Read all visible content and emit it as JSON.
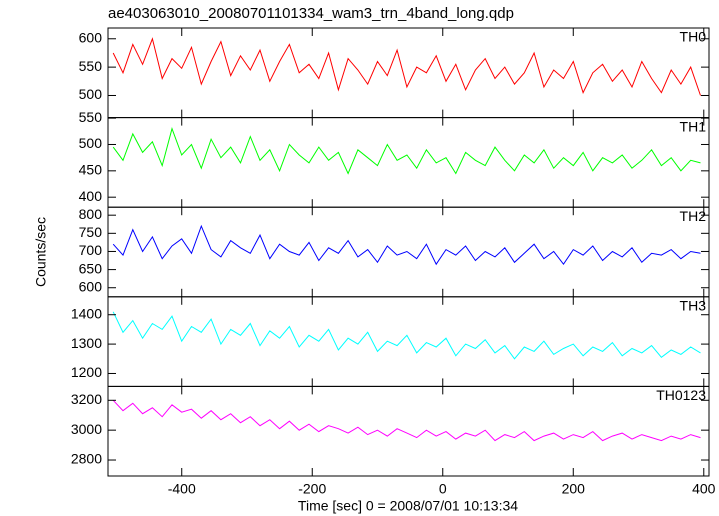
{
  "chart_data": {
    "type": "line",
    "title": "ae403063010_20080701101334_wam3_trn_4band_long.qdp",
    "xlabel": "Time [sec] 0 = 2008/07/01 10:13:34",
    "ylabel": "Counts/sec",
    "xlim": [
      -513,
      408
    ],
    "xticks": [
      -400,
      -200,
      0,
      200,
      400
    ],
    "x": [
      -505,
      -490,
      -475,
      -460,
      -445,
      -430,
      -415,
      -400,
      -385,
      -370,
      -355,
      -340,
      -325,
      -310,
      -295,
      -280,
      -265,
      -250,
      -235,
      -220,
      -205,
      -190,
      -175,
      -160,
      -145,
      -130,
      -115,
      -100,
      -85,
      -70,
      -55,
      -40,
      -25,
      -10,
      5,
      20,
      35,
      50,
      65,
      80,
      95,
      110,
      125,
      140,
      155,
      170,
      185,
      200,
      215,
      230,
      245,
      260,
      275,
      290,
      305,
      320,
      335,
      350,
      365,
      380,
      395
    ],
    "panels": [
      {
        "name": "TH0",
        "color": "#ff0000",
        "ylim": [
          461,
          619
        ],
        "yticks": [
          500,
          550,
          600
        ],
        "values": [
          575,
          540,
          590,
          555,
          600,
          530,
          565,
          548,
          585,
          520,
          560,
          595,
          535,
          570,
          545,
          580,
          525,
          560,
          590,
          540,
          555,
          530,
          575,
          510,
          565,
          545,
          520,
          560,
          535,
          580,
          515,
          550,
          540,
          570,
          525,
          555,
          510,
          545,
          565,
          530,
          550,
          520,
          540,
          575,
          515,
          545,
          530,
          560,
          505,
          540,
          555,
          525,
          545,
          515,
          560,
          530,
          505,
          545,
          520,
          550,
          500
        ]
      },
      {
        "name": "TH1",
        "color": "#00ff00",
        "ylim": [
          381,
          551
        ],
        "yticks": [
          400,
          450,
          500,
          550
        ],
        "values": [
          495,
          470,
          520,
          485,
          505,
          460,
          530,
          480,
          500,
          455,
          510,
          475,
          495,
          465,
          515,
          470,
          490,
          450,
          500,
          480,
          465,
          495,
          470,
          485,
          445,
          490,
          475,
          460,
          500,
          470,
          480,
          455,
          490,
          465,
          475,
          445,
          485,
          470,
          460,
          495,
          470,
          450,
          480,
          465,
          490,
          455,
          475,
          460,
          485,
          450,
          475,
          465,
          480,
          455,
          470,
          490,
          460,
          475,
          450,
          470,
          465
        ]
      },
      {
        "name": "TH2",
        "color": "#0000ff",
        "ylim": [
          575,
          822
        ],
        "yticks": [
          600,
          650,
          700,
          750,
          800
        ],
        "values": [
          720,
          690,
          760,
          700,
          740,
          680,
          715,
          735,
          695,
          770,
          705,
          685,
          730,
          710,
          695,
          745,
          680,
          720,
          700,
          690,
          725,
          675,
          710,
          695,
          730,
          685,
          705,
          670,
          715,
          690,
          700,
          680,
          720,
          665,
          705,
          690,
          715,
          675,
          700,
          685,
          710,
          670,
          695,
          720,
          680,
          700,
          665,
          705,
          690,
          715,
          675,
          700,
          685,
          710,
          670,
          695,
          690,
          705,
          680,
          700,
          695
        ]
      },
      {
        "name": "TH3",
        "color": "#00ffff",
        "ylim": [
          1156,
          1461
        ],
        "yticks": [
          1200,
          1300,
          1400
        ],
        "values": [
          1410,
          1340,
          1380,
          1320,
          1370,
          1350,
          1395,
          1310,
          1360,
          1340,
          1385,
          1300,
          1350,
          1330,
          1370,
          1295,
          1345,
          1320,
          1360,
          1290,
          1330,
          1310,
          1350,
          1280,
          1320,
          1300,
          1340,
          1275,
          1310,
          1295,
          1330,
          1270,
          1305,
          1290,
          1320,
          1260,
          1300,
          1285,
          1315,
          1270,
          1295,
          1250,
          1290,
          1275,
          1310,
          1265,
          1285,
          1300,
          1260,
          1290,
          1275,
          1305,
          1260,
          1285,
          1270,
          1295,
          1255,
          1280,
          1265,
          1290,
          1270
        ]
      },
      {
        "name": "TH0123",
        "color": "#ff00ff",
        "ylim": [
          2693,
          3293
        ],
        "yticks": [
          2800,
          3000,
          3200
        ],
        "values": [
          3200,
          3130,
          3180,
          3110,
          3150,
          3090,
          3170,
          3120,
          3140,
          3080,
          3130,
          3070,
          3110,
          3050,
          3090,
          3030,
          3070,
          3010,
          3060,
          3000,
          3040,
          2990,
          3030,
          3010,
          2980,
          3020,
          2970,
          3000,
          2960,
          3010,
          2980,
          2950,
          3000,
          2960,
          2990,
          2940,
          2980,
          2960,
          3000,
          2930,
          2970,
          2950,
          2990,
          2930,
          2960,
          2980,
          2940,
          2970,
          2950,
          2990,
          2930,
          2960,
          2980,
          2940,
          2970,
          2950,
          2930,
          2960,
          2940,
          2970,
          2950
        ]
      }
    ]
  }
}
